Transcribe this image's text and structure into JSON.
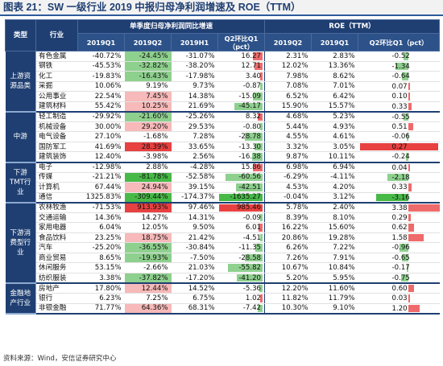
{
  "title": "图表 21：SW 一级行业 2019 中报归母净利润增速及 ROE（TTM）",
  "source": "资料来源：Wind，安信证券研究中心",
  "colors": {
    "header": "#1f3f72",
    "red": "#ef6a6a",
    "green": "#8ed08e",
    "red_strong": "#e84141",
    "green_strong": "#47b947"
  },
  "headers": {
    "category": "类型",
    "industry": "行业",
    "growth_group": "单季度归母净利润同比增速",
    "roe_group": "ROE（TTM）",
    "cols": [
      "2019Q1",
      "2019Q2",
      "2019H1",
      "Q2环比Q1（pct）",
      "2019Q2",
      "2019Q1",
      "Q2环比Q1（pct）"
    ]
  },
  "groups": [
    {
      "label": "上游资源品类",
      "rows": [
        {
          "name": "有色金属",
          "q1": "-40.72%",
          "q2": "-24.45%",
          "h1": "-31.07%",
          "d": "16.27",
          "dv": 16.27,
          "r2": "2.31%",
          "r1": "2.83%",
          "rd": "-0.52",
          "rdv": -0.52,
          "hl": "g"
        },
        {
          "name": "钢铁",
          "q1": "-45.53%",
          "q2": "-32.82%",
          "h1": "-38.20%",
          "d": "12.71",
          "dv": 12.71,
          "r2": "12.02%",
          "r1": "13.36%",
          "rd": "-1.34",
          "rdv": -1.34,
          "hl": "g"
        },
        {
          "name": "化工",
          "q1": "-19.83%",
          "q2": "-16.43%",
          "h1": "-17.98%",
          "d": "3.40",
          "dv": 3.4,
          "r2": "7.98%",
          "r1": "8.62%",
          "rd": "-0.64",
          "rdv": -0.64,
          "hl": "g"
        },
        {
          "name": "采掘",
          "q1": "10.06%",
          "q2": "9.19%",
          "h1": "9.73%",
          "d": "-0.87",
          "dv": -0.87,
          "r2": "7.08%",
          "r1": "7.01%",
          "rd": "0.07",
          "rdv": 0.07,
          "hl": ""
        },
        {
          "name": "公用事业",
          "q1": "22.54%",
          "q2": "7.45%",
          "h1": "14.38%",
          "d": "-15.09",
          "dv": -15.09,
          "r2": "6.52%",
          "r1": "6.42%",
          "rd": "0.10",
          "rdv": 0.1,
          "hl": "r"
        },
        {
          "name": "建筑材料",
          "q1": "55.42%",
          "q2": "10.25%",
          "h1": "21.69%",
          "d": "-45.17",
          "dv": -45.17,
          "r2": "15.90%",
          "r1": "15.57%",
          "rd": "0.33",
          "rdv": 0.33,
          "hl": "r"
        }
      ]
    },
    {
      "label": "中游",
      "rows": [
        {
          "name": "轻工制造",
          "q1": "-29.92%",
          "q2": "-21.60%",
          "h1": "-25.26%",
          "d": "8.32",
          "dv": 8.32,
          "r2": "4.68%",
          "r1": "5.23%",
          "rd": "-0.55",
          "rdv": -0.55,
          "hl": "g"
        },
        {
          "name": "机械设备",
          "q1": "30.00%",
          "q2": "29.20%",
          "h1": "29.53%",
          "d": "-0.80",
          "dv": -0.8,
          "r2": "5.44%",
          "r1": "4.93%",
          "rd": "0.51",
          "rdv": 0.51,
          "hl": "r"
        },
        {
          "name": "电气设备",
          "q1": "27.10%",
          "q2": "-1.68%",
          "h1": "7.28%",
          "d": "-28.78",
          "dv": -28.78,
          "r2": "4.55%",
          "r1": "4.61%",
          "rd": "-0.06",
          "rdv": -0.06,
          "hl": ""
        },
        {
          "name": "国防军工",
          "q1": "41.69%",
          "q2": "28.39%",
          "h1": "33.65%",
          "d": "-13.30",
          "dv": -13.3,
          "r2": "3.32%",
          "r1": "3.05%",
          "rd": "0.27",
          "rdv": 0.27,
          "hl": "R"
        },
        {
          "name": "建筑装饰",
          "q1": "12.40%",
          "q2": "-3.98%",
          "h1": "2.56%",
          "d": "-16.38",
          "dv": -16.38,
          "r2": "9.87%",
          "r1": "10.11%",
          "rd": "-0.24",
          "rdv": -0.24,
          "hl": ""
        }
      ]
    },
    {
      "label": "下游TMT行业",
      "rows": [
        {
          "name": "电子",
          "q1": "-12.98%",
          "q2": "2.88%",
          "h1": "-4.28%",
          "d": "15.86",
          "dv": 15.86,
          "r2": "6.98%",
          "r1": "6.94%",
          "rd": "0.04",
          "rdv": 0.04,
          "hl": ""
        },
        {
          "name": "传媒",
          "q1": "-21.21%",
          "q2": "-81.78%",
          "h1": "-52.58%",
          "d": "-60.56",
          "dv": -60.56,
          "r2": "-6.29%",
          "r1": "-4.11%",
          "rd": "-2.18",
          "rdv": -2.18,
          "hl": "G"
        },
        {
          "name": "计算机",
          "q1": "67.44%",
          "q2": "24.94%",
          "h1": "39.15%",
          "d": "-42.51",
          "dv": -42.51,
          "r2": "4.53%",
          "r1": "4.20%",
          "rd": "0.33",
          "rdv": 0.33,
          "hl": "r"
        },
        {
          "name": "通信",
          "q1": "1325.83%",
          "q2": "-309.44%",
          "h1": "-174.37%",
          "d": "-1635.27",
          "dv": -1635.27,
          "r2": "-0.04%",
          "r1": "3.12%",
          "rd": "-3.16",
          "rdv": -3.16,
          "hl": "G"
        }
      ]
    },
    {
      "label": "下游消费型行业",
      "rows": [
        {
          "name": "农林牧渔",
          "q1": "-71.53%",
          "q2": "913.93%",
          "h1": "97.46%",
          "d": "985.46",
          "dv": 985.46,
          "r2": "5.78%",
          "r1": "2.40%",
          "rd": "3.38",
          "rdv": 3.38,
          "hl": "R"
        },
        {
          "name": "交通运输",
          "q1": "14.36%",
          "q2": "14.27%",
          "h1": "14.31%",
          "d": "-0.09",
          "dv": -0.09,
          "r2": "8.39%",
          "r1": "8.10%",
          "rd": "0.29",
          "rdv": 0.29,
          "hl": ""
        },
        {
          "name": "家用电器",
          "q1": "6.04%",
          "q2": "12.05%",
          "h1": "9.50%",
          "d": "6.01",
          "dv": 6.01,
          "r2": "16.22%",
          "r1": "15.60%",
          "rd": "0.62",
          "rdv": 0.62,
          "hl": ""
        },
        {
          "name": "食品饮料",
          "q1": "23.25%",
          "q2": "18.75%",
          "h1": "21.42%",
          "d": "-4.51",
          "dv": -4.51,
          "r2": "20.86%",
          "r1": "19.28%",
          "rd": "1.58",
          "rdv": 1.58,
          "hl": "r"
        },
        {
          "name": "汽车",
          "q1": "-25.20%",
          "q2": "-36.55%",
          "h1": "-30.84%",
          "d": "-11.35",
          "dv": -11.35,
          "r2": "6.26%",
          "r1": "7.22%",
          "rd": "-0.96",
          "rdv": -0.96,
          "hl": "g"
        },
        {
          "name": "商业贸易",
          "q1": "8.65%",
          "q2": "-19.93%",
          "h1": "-7.50%",
          "d": "-28.58",
          "dv": -28.58,
          "r2": "7.26%",
          "r1": "7.91%",
          "rd": "-0.65",
          "rdv": -0.65,
          "hl": "g"
        },
        {
          "name": "休闲服务",
          "q1": "53.15%",
          "q2": "-2.66%",
          "h1": "21.03%",
          "d": "-55.82",
          "dv": -55.82,
          "r2": "10.67%",
          "r1": "10.84%",
          "rd": "-0.17",
          "rdv": -0.17,
          "hl": ""
        },
        {
          "name": "纺织服装",
          "q1": "3.38%",
          "q2": "-37.82%",
          "h1": "-17.20%",
          "d": "-41.20",
          "dv": -41.2,
          "r2": "5.20%",
          "r1": "5.95%",
          "rd": "-0.75",
          "rdv": -0.75,
          "hl": "g"
        }
      ]
    },
    {
      "label": "金融地产行业",
      "rows": [
        {
          "name": "房地产",
          "q1": "17.80%",
          "q2": "12.44%",
          "h1": "14.52%",
          "d": "-5.36",
          "dv": -5.36,
          "r2": "12.20%",
          "r1": "11.60%",
          "rd": "0.60",
          "rdv": 0.6,
          "hl": "r"
        },
        {
          "name": "银行",
          "q1": "6.23%",
          "q2": "7.25%",
          "h1": "6.75%",
          "d": "1.02",
          "dv": 1.02,
          "r2": "11.82%",
          "r1": "11.79%",
          "rd": "0.03",
          "rdv": 0.03,
          "hl": ""
        },
        {
          "name": "非银金融",
          "q1": "71.77%",
          "q2": "64.36%",
          "h1": "68.31%",
          "d": "-7.42",
          "dv": -7.42,
          "r2": "10.30%",
          "r1": "9.10%",
          "rd": "1.20",
          "rdv": 1.2,
          "hl": "r"
        }
      ]
    }
  ]
}
